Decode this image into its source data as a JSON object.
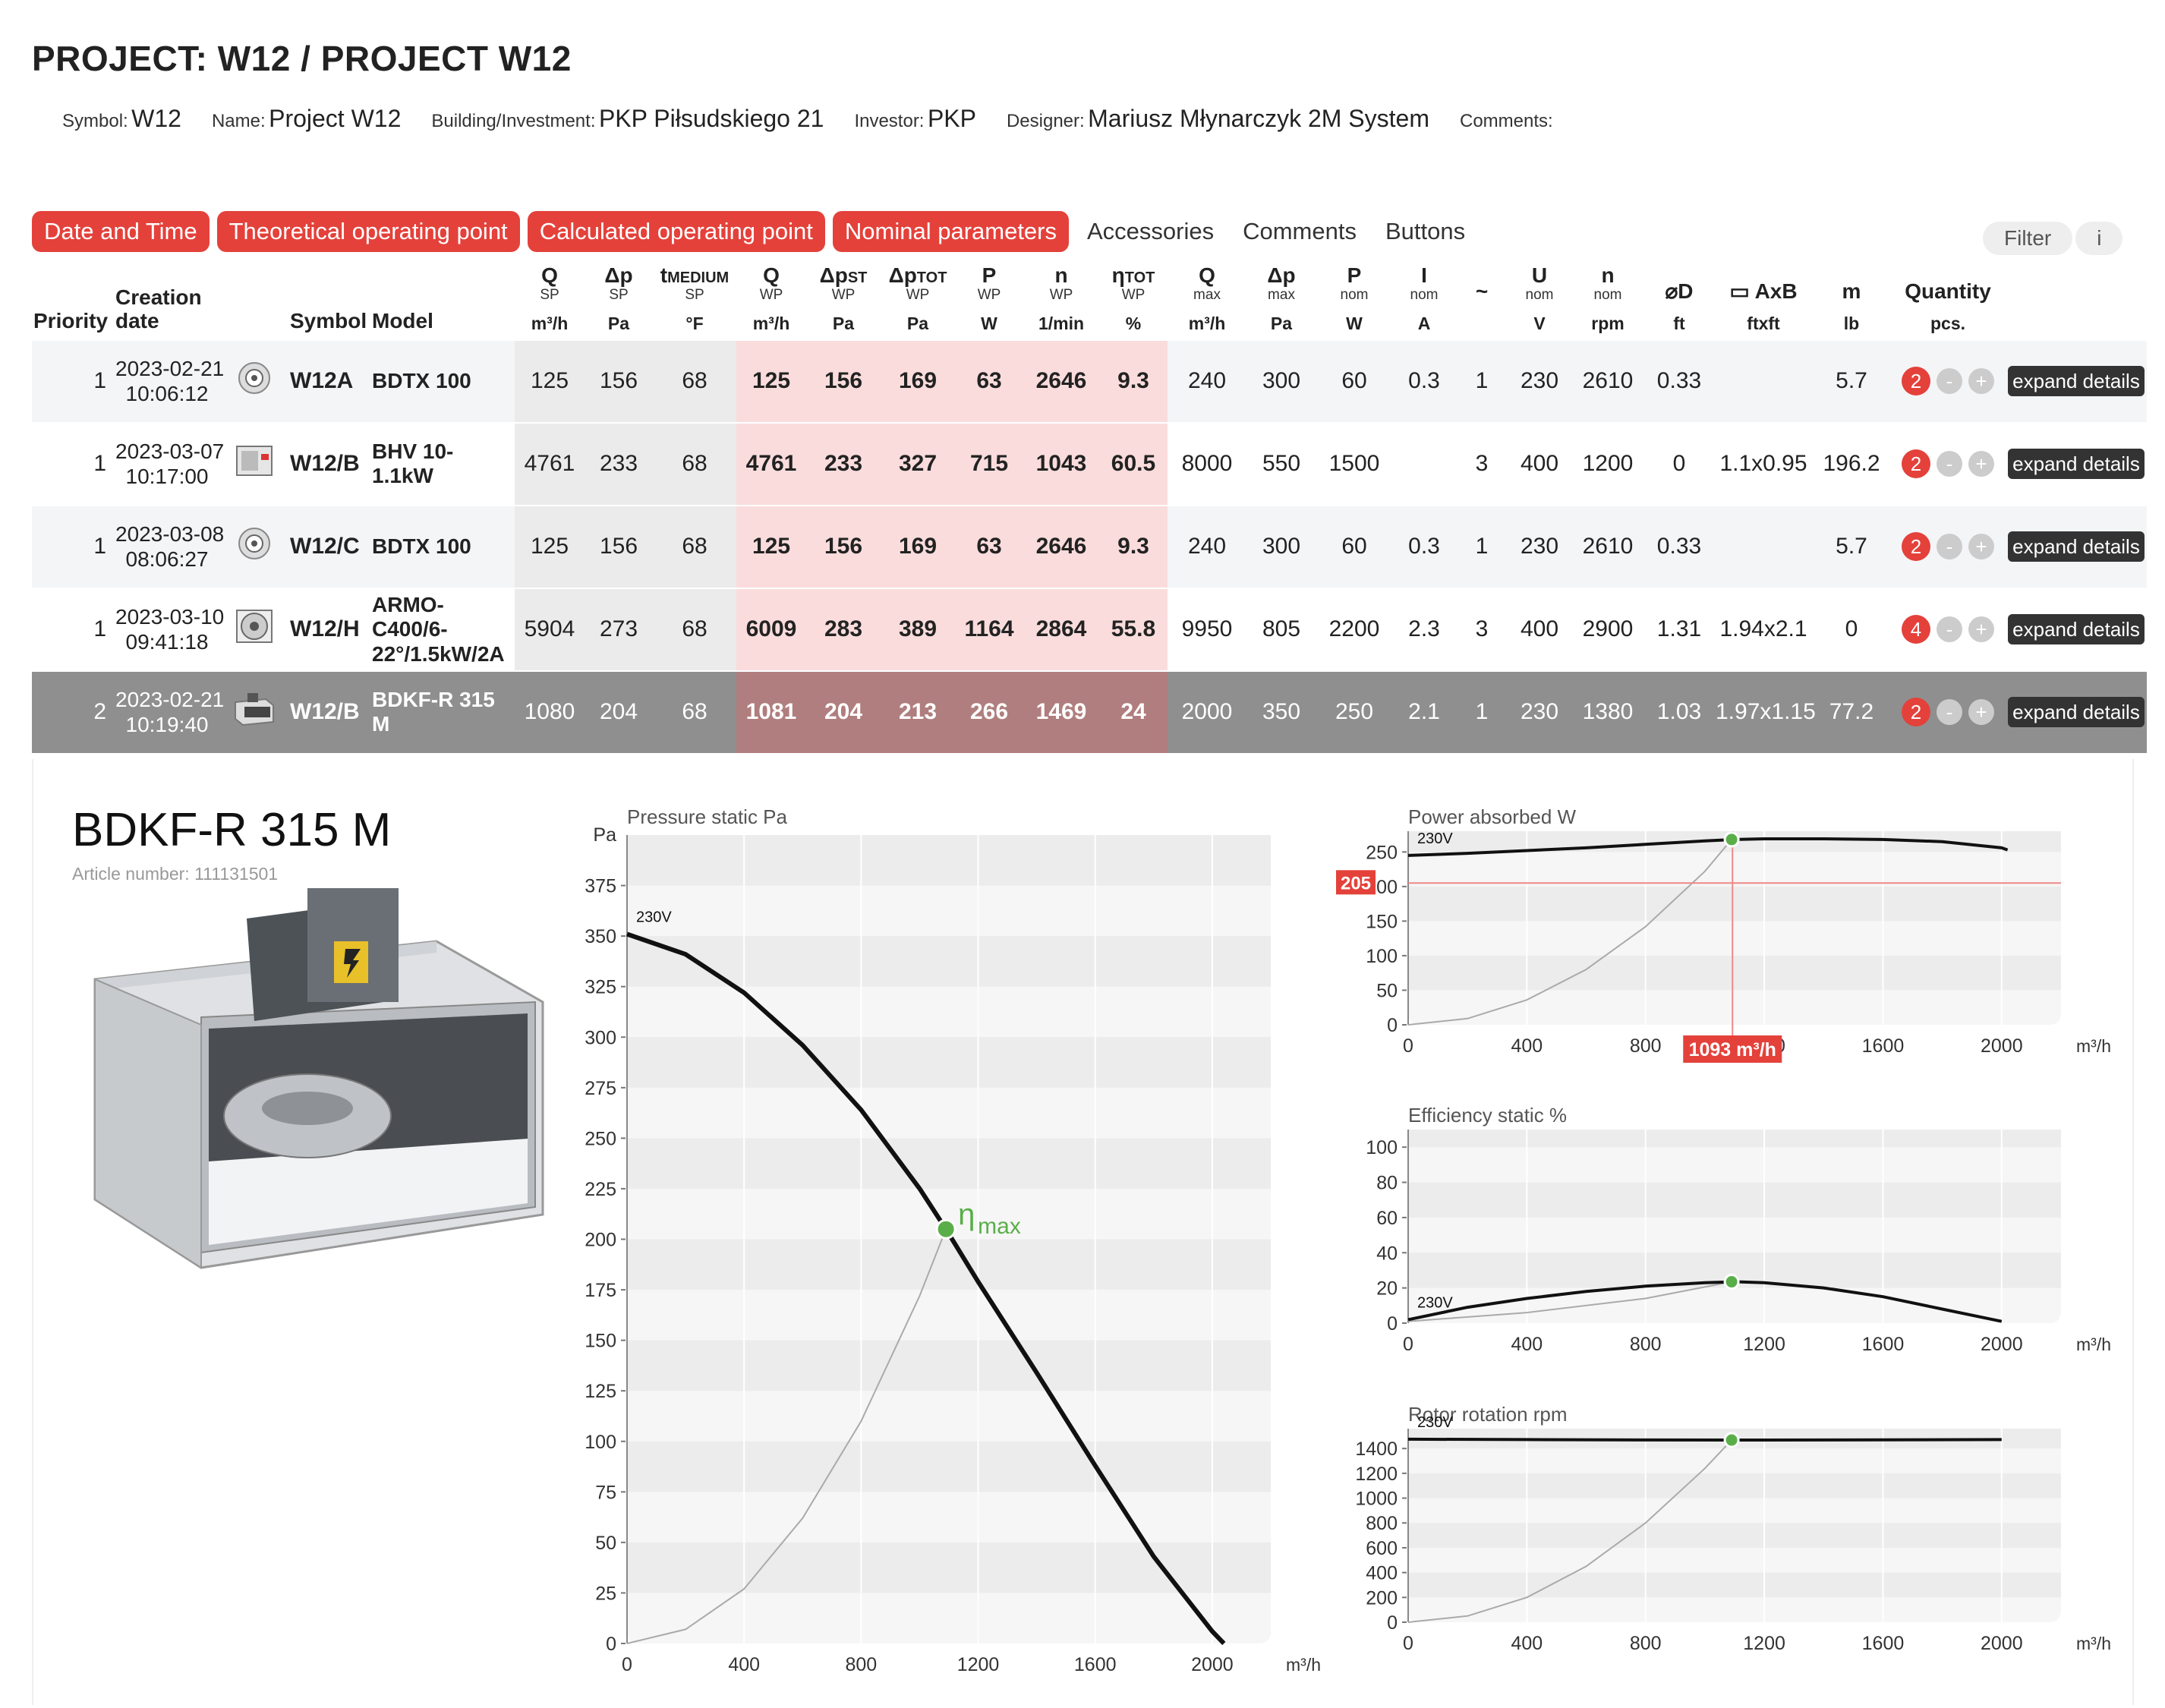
{
  "project": {
    "title": "PROJECT: W12 / PROJECT W12",
    "symbol_label": "Symbol:",
    "symbol": "W12",
    "name_label": "Name:",
    "name": "Project W12",
    "building_label": "Building/Investment:",
    "building": "PKP Piłsudskiego 21",
    "investor_label": "Investor:",
    "investor": "PKP",
    "designer_label": "Designer:",
    "designer": "Mariusz Młynarczyk 2M System",
    "comments_label": "Comments:"
  },
  "tabs": [
    {
      "label": "Date and Time",
      "active": true
    },
    {
      "label": "Theoretical operating point",
      "active": true
    },
    {
      "label": "Calculated operating point",
      "active": true
    },
    {
      "label": "Nominal parameters",
      "active": true
    },
    {
      "label": "Accessories",
      "active": false
    },
    {
      "label": "Comments",
      "active": false
    },
    {
      "label": "Buttons",
      "active": false
    }
  ],
  "filter": {
    "label": "Filter",
    "info": "i"
  },
  "columns": {
    "priority": "Priority",
    "creation_1": "Creation",
    "creation_2": "date",
    "symbol": "Symbol",
    "model": "Model",
    "q_sp": "Q",
    "q_sp_sub": "SP",
    "q_sp_unit": "m³/h",
    "dp_sp": "Δp",
    "dp_sp_sub": "SP",
    "dp_sp_unit": "Pa",
    "t_sp": "t",
    "t_sp_sup": "MEDIUM",
    "t_sp_sub": "SP",
    "t_sp_unit": "°F",
    "q_wp": "Q",
    "q_wp_sub": "WP",
    "q_wp_unit": "m³/h",
    "dpst_wp": "Δp",
    "dpst_wp_sup": "ST",
    "dpst_wp_sub": "WP",
    "dpst_wp_unit": "Pa",
    "dptot_wp": "Δp",
    "dptot_wp_sup": "TOT",
    "dptot_wp_sub": "WP",
    "dptot_wp_unit": "Pa",
    "p_wp": "P",
    "p_wp_sub": "WP",
    "p_wp_unit": "W",
    "n_wp": "n",
    "n_wp_sub": "WP",
    "n_wp_unit": "1/min",
    "eta_wp": "η",
    "eta_wp_sup": "TOT",
    "eta_wp_sub": "WP",
    "eta_wp_unit": "%",
    "q_max": "Q",
    "q_max_sub": "max",
    "q_max_unit": "m³/h",
    "dp_max": "Δp",
    "dp_max_sub": "max",
    "dp_max_unit": "Pa",
    "p_nom": "P",
    "p_nom_sub": "nom",
    "p_nom_unit": "W",
    "i_nom": "I",
    "i_nom_sub": "nom",
    "i_nom_unit": "A",
    "phase": "~",
    "u_nom": "U",
    "u_nom_sub": "nom",
    "u_nom_unit": "V",
    "n_nom": "n",
    "n_nom_sub": "nom",
    "n_nom_unit": "rpm",
    "d": "⌀D",
    "d_unit": "ft",
    "axb": "▭ AxB",
    "axb_unit": "ftxft",
    "m": "m",
    "m_unit": "lb",
    "qty": "Quantity",
    "qty_unit": "pcs."
  },
  "rows": [
    {
      "priority": "1",
      "date": "2023-02-21",
      "time": "10:06:12",
      "thumb": "round-duct-fan",
      "symbol": "W12A",
      "model": "BDTX 100",
      "q_sp": "125",
      "dp_sp": "156",
      "t_sp": "68",
      "q_wp": "125",
      "dpst_wp": "156",
      "dptot_wp": "169",
      "p_wp": "63",
      "n_wp": "2646",
      "eta_wp": "9.3",
      "q_max": "240",
      "dp_max": "300",
      "p_nom": "60",
      "i_nom": "0.3",
      "phase": "1",
      "u_nom": "230",
      "n_nom": "2610",
      "d": "0.33",
      "axb": "",
      "m": "5.7",
      "qty": "2",
      "minus": "-",
      "plus": "+",
      "expand": "expand details"
    },
    {
      "priority": "1",
      "date": "2023-03-07",
      "time": "10:17:00",
      "thumb": "box-fan",
      "symbol": "W12/B",
      "model": "BHV 10-1.1kW",
      "q_sp": "4761",
      "dp_sp": "233",
      "t_sp": "68",
      "q_wp": "4761",
      "dpst_wp": "233",
      "dptot_wp": "327",
      "p_wp": "715",
      "n_wp": "1043",
      "eta_wp": "60.5",
      "q_max": "8000",
      "dp_max": "550",
      "p_nom": "1500",
      "i_nom": "",
      "phase": "3",
      "u_nom": "400",
      "n_nom": "1200",
      "d": "0",
      "axb": "1.1x0.95",
      "m": "196.2",
      "qty": "2",
      "minus": "-",
      "plus": "+",
      "expand": "expand details"
    },
    {
      "priority": "1",
      "date": "2023-03-08",
      "time": "08:06:27",
      "thumb": "round-duct-fan",
      "symbol": "W12/C",
      "model": "BDTX 100",
      "q_sp": "125",
      "dp_sp": "156",
      "t_sp": "68",
      "q_wp": "125",
      "dpst_wp": "156",
      "dptot_wp": "169",
      "p_wp": "63",
      "n_wp": "2646",
      "eta_wp": "9.3",
      "q_max": "240",
      "dp_max": "300",
      "p_nom": "60",
      "i_nom": "0.3",
      "phase": "1",
      "u_nom": "230",
      "n_nom": "2610",
      "d": "0.33",
      "axb": "",
      "m": "5.7",
      "qty": "2",
      "minus": "-",
      "plus": "+",
      "expand": "expand details"
    },
    {
      "priority": "1",
      "date": "2023-03-10",
      "time": "09:41:18",
      "thumb": "axial-fan",
      "symbol": "W12/H",
      "model": "ARMO-C400/6-22°/1.5kW/2A",
      "q_sp": "5904",
      "dp_sp": "273",
      "t_sp": "68",
      "q_wp": "6009",
      "dpst_wp": "283",
      "dptot_wp": "389",
      "p_wp": "1164",
      "n_wp": "2864",
      "eta_wp": "55.8",
      "q_max": "9950",
      "dp_max": "805",
      "p_nom": "2200",
      "i_nom": "2.3",
      "phase": "3",
      "u_nom": "400",
      "n_nom": "2900",
      "d": "1.31",
      "axb": "1.94x2.1",
      "m": "0",
      "qty": "4",
      "minus": "-",
      "plus": "+",
      "expand": "expand details"
    },
    {
      "priority": "2",
      "date": "2023-02-21",
      "time": "10:19:40",
      "thumb": "rect-duct-fan",
      "symbol": "W12/B",
      "model": "BDKF-R 315 M",
      "q_sp": "1080",
      "dp_sp": "204",
      "t_sp": "68",
      "q_wp": "1081",
      "dpst_wp": "204",
      "dptot_wp": "213",
      "p_wp": "266",
      "n_wp": "1469",
      "eta_wp": "24",
      "q_max": "2000",
      "dp_max": "350",
      "p_nom": "250",
      "i_nom": "2.1",
      "phase": "1",
      "u_nom": "230",
      "n_nom": "1380",
      "d": "1.03",
      "axb": "1.97x1.15",
      "m": "77.2",
      "qty": "2",
      "minus": "-",
      "plus": "+",
      "expand": "expand details",
      "selected": true
    }
  ],
  "detail": {
    "product_name": "BDKF-R 315 M",
    "article_label": "Article number:",
    "article_number": "111131501"
  },
  "chart_data": [
    {
      "type": "line",
      "title": "Pressure static Pa",
      "ylabel": "Pa",
      "xlabel": "m³/h",
      "xlim": [
        0,
        2200
      ],
      "ylim": [
        0,
        400
      ],
      "xticks": [
        0,
        400,
        800,
        1200,
        1600,
        2000
      ],
      "yticks": [
        0,
        25,
        50,
        75,
        100,
        125,
        150,
        175,
        200,
        225,
        250,
        275,
        300,
        325,
        350,
        375
      ],
      "series": [
        {
          "name": "230V",
          "x": [
            0,
            200,
            400,
            600,
            800,
            1000,
            1090,
            1200,
            1400,
            1600,
            1800,
            2000,
            2040
          ],
          "y": [
            351,
            341,
            322,
            296,
            264,
            225,
            205,
            179,
            134,
            88,
            43,
            6,
            0
          ]
        }
      ],
      "system_curve": {
        "x": [
          0,
          200,
          400,
          600,
          800,
          1000,
          1090
        ],
        "y": [
          0,
          7,
          27,
          62,
          110,
          172,
          205
        ]
      },
      "operating_point": {
        "x": 1090,
        "y": 205,
        "label": "η",
        "label_sub": "max"
      }
    },
    {
      "type": "line",
      "title": "Power absorbed W",
      "xlabel": "m³/h",
      "xlim": [
        0,
        2200
      ],
      "ylim": [
        0,
        280
      ],
      "xticks": [
        0,
        400,
        800,
        1200,
        1600,
        2000
      ],
      "yticks": [
        0,
        50,
        100,
        150,
        200,
        250
      ],
      "series": [
        {
          "name": "230V",
          "x": [
            0,
            200,
            400,
            600,
            800,
            1000,
            1100,
            1200,
            1400,
            1600,
            1800,
            2000,
            2020
          ],
          "y": [
            245,
            248,
            252,
            256,
            261,
            266,
            268,
            269,
            269,
            268,
            265,
            256,
            253
          ]
        }
      ],
      "system_curve": {
        "x": [
          0,
          200,
          400,
          600,
          800,
          1000,
          1090
        ],
        "y": [
          0,
          9,
          36,
          80,
          142,
          222,
          268
        ]
      },
      "operating_point": {
        "x": 1090,
        "y": 268
      },
      "crosshair": {
        "x": 1093,
        "y": 205,
        "x_label": "1093 m³/h",
        "y_label": "205"
      }
    },
    {
      "type": "line",
      "title": "Efficiency static %",
      "xlabel": "m³/h",
      "xlim": [
        0,
        2200
      ],
      "ylim": [
        0,
        110
      ],
      "xticks": [
        0,
        400,
        800,
        1200,
        1600,
        2000
      ],
      "yticks": [
        0,
        20,
        40,
        60,
        80,
        100
      ],
      "series": [
        {
          "name": "230V",
          "x": [
            0,
            200,
            400,
            600,
            800,
            1000,
            1100,
            1200,
            1400,
            1600,
            1800,
            2000
          ],
          "y": [
            2,
            9,
            14,
            18,
            21,
            23,
            23.5,
            23,
            20,
            15,
            8,
            1
          ]
        }
      ],
      "system_curve": {
        "x": [
          0,
          400,
          800,
          1090
        ],
        "y": [
          1,
          6,
          14,
          23.5
        ]
      },
      "operating_point": {
        "x": 1090,
        "y": 23.5
      }
    },
    {
      "type": "line",
      "title": "Rotor rotation rpm",
      "xlabel": "m³/h",
      "xlim": [
        0,
        2200
      ],
      "ylim": [
        0,
        1560
      ],
      "xticks": [
        0,
        400,
        800,
        1200,
        1600,
        2000
      ],
      "yticks": [
        0,
        200,
        400,
        600,
        800,
        1000,
        1200,
        1400
      ],
      "series": [
        {
          "name": "230V",
          "x": [
            0,
            400,
            800,
            1090,
            1200,
            1600,
            2000
          ],
          "y": [
            1475,
            1472,
            1469,
            1468,
            1468,
            1470,
            1472
          ]
        }
      ],
      "system_curve": {
        "x": [
          0,
          200,
          400,
          600,
          800,
          1000,
          1090
        ],
        "y": [
          0,
          50,
          200,
          450,
          800,
          1240,
          1468
        ]
      },
      "operating_point": {
        "x": 1090,
        "y": 1468
      }
    }
  ]
}
